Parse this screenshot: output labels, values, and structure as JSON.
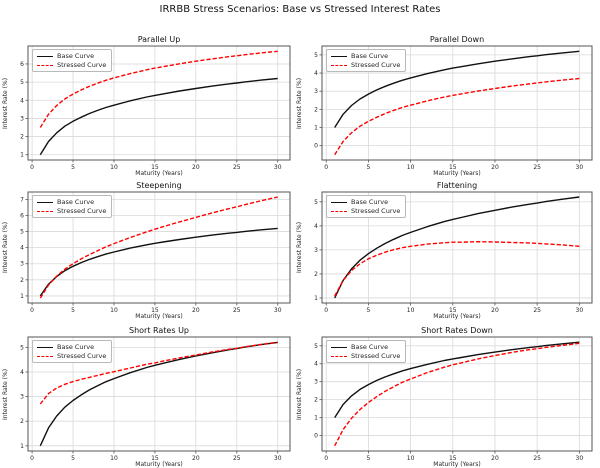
{
  "figure": {
    "title": "IRRBB Stress Scenarios: Base vs Stressed Interest Rates",
    "background_color": "#ffffff",
    "grid_color": "#d9d9d9",
    "spine_color": "#555555",
    "tick_color": "#555555",
    "base_color": "#111111",
    "stressed_color": "#ff0000"
  },
  "chart_data": [
    {
      "type": "line",
      "title": "Parallel Up",
      "xlabel": "Maturity (Years)",
      "ylabel": "Interest Rate (%)",
      "x": [
        1,
        2,
        3,
        4,
        5,
        6,
        7,
        8,
        9,
        10,
        12,
        14,
        15,
        16,
        18,
        20,
        22,
        24,
        25,
        26,
        28,
        30
      ],
      "series": [
        {
          "name": "Base Curve",
          "color": "#111111",
          "style": "solid",
          "values": [
            1.0,
            1.73,
            2.21,
            2.57,
            2.84,
            3.07,
            3.27,
            3.44,
            3.6,
            3.73,
            3.97,
            4.18,
            4.27,
            4.35,
            4.51,
            4.65,
            4.78,
            4.9,
            4.95,
            5.01,
            5.11,
            5.2
          ]
        },
        {
          "name": "Stressed Curve",
          "color": "#ff0000",
          "style": "dashed",
          "values": [
            2.5,
            3.23,
            3.71,
            4.07,
            4.34,
            4.57,
            4.77,
            4.94,
            5.1,
            5.23,
            5.47,
            5.68,
            5.77,
            5.85,
            6.01,
            6.15,
            6.28,
            6.4,
            6.45,
            6.51,
            6.61,
            6.7
          ]
        }
      ],
      "xlim": [
        -0.5,
        31.5
      ],
      "ylim": [
        0.71,
        6.99
      ],
      "xticks": [
        0,
        5,
        10,
        15,
        20,
        25,
        30
      ],
      "yticks": [
        1,
        2,
        3,
        4,
        5,
        6
      ],
      "legend_position": "upper left",
      "grid": true
    },
    {
      "type": "line",
      "title": "Parallel Down",
      "xlabel": "Maturity (Years)",
      "ylabel": "Interest Rate (%)",
      "x": [
        1,
        2,
        3,
        4,
        5,
        6,
        7,
        8,
        9,
        10,
        12,
        14,
        15,
        16,
        18,
        20,
        22,
        24,
        25,
        26,
        28,
        30
      ],
      "series": [
        {
          "name": "Base Curve",
          "color": "#111111",
          "style": "solid",
          "values": [
            1.0,
            1.73,
            2.21,
            2.57,
            2.84,
            3.07,
            3.27,
            3.44,
            3.6,
            3.73,
            3.97,
            4.18,
            4.27,
            4.35,
            4.51,
            4.65,
            4.78,
            4.9,
            4.95,
            5.01,
            5.11,
            5.2
          ]
        },
        {
          "name": "Stressed Curve",
          "color": "#ff0000",
          "style": "dashed",
          "values": [
            -0.5,
            0.23,
            0.71,
            1.07,
            1.34,
            1.57,
            1.77,
            1.94,
            2.1,
            2.23,
            2.47,
            2.68,
            2.77,
            2.85,
            3.01,
            3.15,
            3.28,
            3.4,
            3.45,
            3.51,
            3.61,
            3.7
          ]
        }
      ],
      "xlim": [
        -0.5,
        31.5
      ],
      "ylim": [
        -0.79,
        5.49
      ],
      "xticks": [
        0,
        5,
        10,
        15,
        20,
        25,
        30
      ],
      "yticks": [
        0,
        1,
        2,
        3,
        4,
        5
      ],
      "legend_position": "upper left",
      "grid": true
    },
    {
      "type": "line",
      "title": "Steepening",
      "xlabel": "Maturity (Years)",
      "ylabel": "Interest Rate (%)",
      "x": [
        1,
        2,
        3,
        4,
        5,
        6,
        7,
        8,
        9,
        10,
        12,
        14,
        15,
        16,
        18,
        20,
        22,
        24,
        25,
        26,
        28,
        30
      ],
      "series": [
        {
          "name": "Base Curve",
          "color": "#111111",
          "style": "solid",
          "values": [
            1.0,
            1.73,
            2.21,
            2.57,
            2.84,
            3.07,
            3.27,
            3.44,
            3.6,
            3.73,
            3.97,
            4.18,
            4.27,
            4.35,
            4.51,
            4.65,
            4.78,
            4.9,
            4.95,
            5.01,
            5.11,
            5.2
          ]
        },
        {
          "name": "Stressed Curve",
          "color": "#ff0000",
          "style": "dashed",
          "values": [
            0.87,
            1.67,
            2.23,
            2.66,
            3.0,
            3.3,
            3.57,
            3.81,
            4.05,
            4.25,
            4.63,
            4.98,
            5.15,
            5.3,
            5.6,
            5.88,
            6.16,
            6.42,
            6.54,
            6.67,
            6.92,
            7.15
          ]
        }
      ],
      "xlim": [
        -0.5,
        31.5
      ],
      "ylim": [
        0.56,
        7.46
      ],
      "xticks": [
        0,
        5,
        10,
        15,
        20,
        25,
        30
      ],
      "yticks": [
        1,
        2,
        3,
        4,
        5,
        6,
        7
      ],
      "legend_position": "upper left",
      "grid": true
    },
    {
      "type": "line",
      "title": "Flattening",
      "xlabel": "Maturity (Years)",
      "ylabel": "Interest Rate (%)",
      "x": [
        1,
        2,
        3,
        4,
        5,
        6,
        7,
        8,
        9,
        10,
        12,
        14,
        15,
        16,
        18,
        20,
        22,
        24,
        25,
        26,
        28,
        30
      ],
      "series": [
        {
          "name": "Base Curve",
          "color": "#111111",
          "style": "solid",
          "values": [
            1.0,
            1.73,
            2.21,
            2.57,
            2.84,
            3.07,
            3.27,
            3.44,
            3.6,
            3.73,
            3.97,
            4.18,
            4.27,
            4.35,
            4.51,
            4.65,
            4.78,
            4.9,
            4.95,
            5.01,
            5.11,
            5.2
          ]
        },
        {
          "name": "Stressed Curve",
          "color": "#ff0000",
          "style": "dashed",
          "values": [
            1.08,
            1.73,
            2.14,
            2.42,
            2.63,
            2.78,
            2.91,
            3.01,
            3.09,
            3.15,
            3.24,
            3.3,
            3.32,
            3.32,
            3.34,
            3.33,
            3.31,
            3.29,
            3.27,
            3.25,
            3.21,
            3.15
          ]
        }
      ],
      "xlim": [
        -0.5,
        31.5
      ],
      "ylim": [
        0.79,
        5.41
      ],
      "xticks": [
        0,
        5,
        10,
        15,
        20,
        25,
        30
      ],
      "yticks": [
        1,
        2,
        3,
        4,
        5
      ],
      "legend_position": "upper left",
      "grid": true
    },
    {
      "type": "line",
      "title": "Short Rates Up",
      "xlabel": "Maturity (Years)",
      "ylabel": "Interest Rate (%)",
      "x": [
        1,
        2,
        3,
        4,
        5,
        6,
        7,
        8,
        9,
        10,
        12,
        14,
        15,
        16,
        18,
        20,
        22,
        24,
        25,
        26,
        28,
        30
      ],
      "series": [
        {
          "name": "Base Curve",
          "color": "#111111",
          "style": "solid",
          "values": [
            1.0,
            1.73,
            2.21,
            2.57,
            2.84,
            3.07,
            3.27,
            3.44,
            3.6,
            3.73,
            3.97,
            4.18,
            4.27,
            4.35,
            4.51,
            4.65,
            4.78,
            4.9,
            4.95,
            5.01,
            5.11,
            5.2
          ]
        },
        {
          "name": "Stressed Curve",
          "color": "#ff0000",
          "style": "dashed",
          "values": [
            2.7,
            3.12,
            3.35,
            3.5,
            3.61,
            3.7,
            3.78,
            3.86,
            3.94,
            4.01,
            4.16,
            4.31,
            4.37,
            4.44,
            4.57,
            4.69,
            4.81,
            4.92,
            4.96,
            5.02,
            5.12,
            5.21
          ]
        }
      ],
      "xlim": [
        -0.5,
        31.5
      ],
      "ylim": [
        0.79,
        5.42
      ],
      "xticks": [
        0,
        5,
        10,
        15,
        20,
        25,
        30
      ],
      "yticks": [
        1,
        2,
        3,
        4,
        5
      ],
      "legend_position": "upper left",
      "grid": true
    },
    {
      "type": "line",
      "title": "Short Rates Down",
      "xlabel": "Maturity (Years)",
      "ylabel": "Interest Rate (%)",
      "x": [
        1,
        2,
        3,
        4,
        5,
        6,
        7,
        8,
        9,
        10,
        12,
        14,
        15,
        16,
        18,
        20,
        22,
        24,
        25,
        26,
        28,
        30
      ],
      "series": [
        {
          "name": "Base Curve",
          "color": "#111111",
          "style": "solid",
          "values": [
            1.0,
            1.73,
            2.21,
            2.57,
            2.84,
            3.07,
            3.27,
            3.44,
            3.6,
            3.73,
            3.97,
            4.18,
            4.27,
            4.35,
            4.51,
            4.65,
            4.78,
            4.9,
            4.95,
            5.01,
            5.11,
            5.2
          ]
        },
        {
          "name": "Stressed Curve",
          "color": "#ff0000",
          "style": "dashed",
          "values": [
            -0.57,
            0.33,
            0.96,
            1.45,
            1.84,
            2.17,
            2.47,
            2.72,
            2.96,
            3.15,
            3.51,
            3.81,
            3.94,
            4.05,
            4.27,
            4.46,
            4.63,
            4.78,
            4.84,
            4.91,
            5.03,
            5.14
          ]
        }
      ],
      "xlim": [
        -0.5,
        31.5
      ],
      "ylim": [
        -0.86,
        5.49
      ],
      "xticks": [
        0,
        5,
        10,
        15,
        20,
        25,
        30
      ],
      "yticks": [
        0,
        1,
        2,
        3,
        4,
        5
      ],
      "legend_position": "upper left",
      "grid": true
    }
  ]
}
